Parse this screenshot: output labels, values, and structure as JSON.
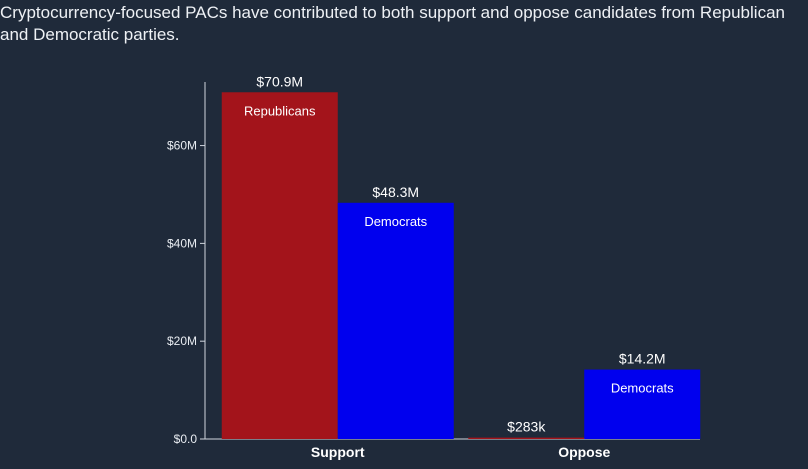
{
  "caption": "Cryptocurrency-focused PACs have contributed to both support and oppose candidates from Republican and Democratic parties.",
  "chart_data": {
    "type": "bar",
    "categories": [
      "Support",
      "Oppose"
    ],
    "series": [
      {
        "name": "Republicans",
        "color": "#a3141b",
        "values": [
          70.9,
          0.283
        ],
        "value_labels": [
          "$70.9M",
          "$283k"
        ],
        "bar_labels": [
          "Republicans",
          ""
        ]
      },
      {
        "name": "Democrats",
        "color": "#0000ee",
        "values": [
          48.3,
          14.2
        ],
        "value_labels": [
          "$48.3M",
          "$14.2M"
        ],
        "bar_labels": [
          "Democrats",
          "Democrats"
        ]
      }
    ],
    "ylim": [
      0,
      73
    ],
    "yticks": [
      0,
      20,
      40,
      60
    ],
    "ytick_labels": [
      "$0.0",
      "$20M",
      "$40M",
      "$60M"
    ],
    "xlabel": "",
    "ylabel": "",
    "grid": false
  }
}
